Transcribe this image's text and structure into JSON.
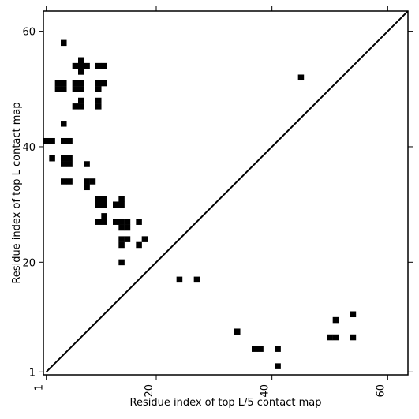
{
  "chart_data": {
    "type": "heatmap",
    "title": "",
    "xlabel": "Residue index of top L/5 contact map",
    "ylabel": "Residue index of top L contact map",
    "xlim": [
      0.5,
      63.5
    ],
    "ylim": [
      0.5,
      63.5
    ],
    "x_ticks": [
      1,
      20,
      40,
      60
    ],
    "x_tick_labels": [
      "1",
      "20",
      "40",
      "60"
    ],
    "y_ticks": [
      1,
      20,
      40,
      60
    ],
    "y_tick_labels": [
      "1",
      "20",
      "40",
      "60"
    ],
    "x_tick_label_rotation": 270,
    "grid": false,
    "diagonal_line": true,
    "contact_color": "#000000",
    "upper_contacts_top_L": [
      [
        4,
        58
      ],
      [
        7,
        55
      ],
      [
        6,
        54
      ],
      [
        7,
        54
      ],
      [
        8,
        54
      ],
      [
        7,
        53
      ],
      [
        10,
        54
      ],
      [
        11,
        54
      ],
      [
        4,
        51
      ],
      [
        3,
        51
      ],
      [
        4,
        50
      ],
      [
        3,
        50
      ],
      [
        6,
        51
      ],
      [
        7,
        51
      ],
      [
        6,
        50
      ],
      [
        7,
        50
      ],
      [
        10,
        51
      ],
      [
        11,
        51
      ],
      [
        10,
        50
      ],
      [
        7,
        48
      ],
      [
        6,
        47
      ],
      [
        7,
        47
      ],
      [
        10,
        48
      ],
      [
        10,
        47
      ],
      [
        4,
        44
      ],
      [
        1,
        41
      ],
      [
        2,
        41
      ],
      [
        4,
        41
      ],
      [
        5,
        41
      ],
      [
        2,
        38
      ],
      [
        4,
        38
      ],
      [
        5,
        38
      ],
      [
        4,
        37
      ],
      [
        5,
        37
      ],
      [
        8,
        37
      ],
      [
        4,
        34
      ],
      [
        5,
        34
      ],
      [
        8,
        34
      ],
      [
        9,
        34
      ],
      [
        8,
        33
      ],
      [
        10,
        31
      ],
      [
        11,
        31
      ],
      [
        14,
        31
      ],
      [
        10,
        30
      ],
      [
        11,
        30
      ],
      [
        13,
        30
      ],
      [
        14,
        30
      ],
      [
        11,
        28
      ],
      [
        10,
        27
      ],
      [
        11,
        27
      ],
      [
        13,
        27
      ],
      [
        14,
        27
      ],
      [
        15,
        27
      ],
      [
        17,
        27
      ],
      [
        14,
        26
      ],
      [
        15,
        26
      ],
      [
        14,
        24
      ],
      [
        15,
        24
      ],
      [
        18,
        24
      ],
      [
        14,
        23
      ],
      [
        17,
        23
      ],
      [
        14,
        20
      ],
      [
        45,
        52
      ]
    ],
    "lower_contacts_top_L5": [
      [
        24,
        17
      ],
      [
        27,
        17
      ],
      [
        54,
        11
      ],
      [
        51,
        10
      ],
      [
        34,
        8
      ],
      [
        50,
        7
      ],
      [
        51,
        7
      ],
      [
        54,
        7
      ],
      [
        37,
        5
      ],
      [
        38,
        5
      ],
      [
        41,
        5
      ],
      [
        41,
        2
      ]
    ]
  }
}
